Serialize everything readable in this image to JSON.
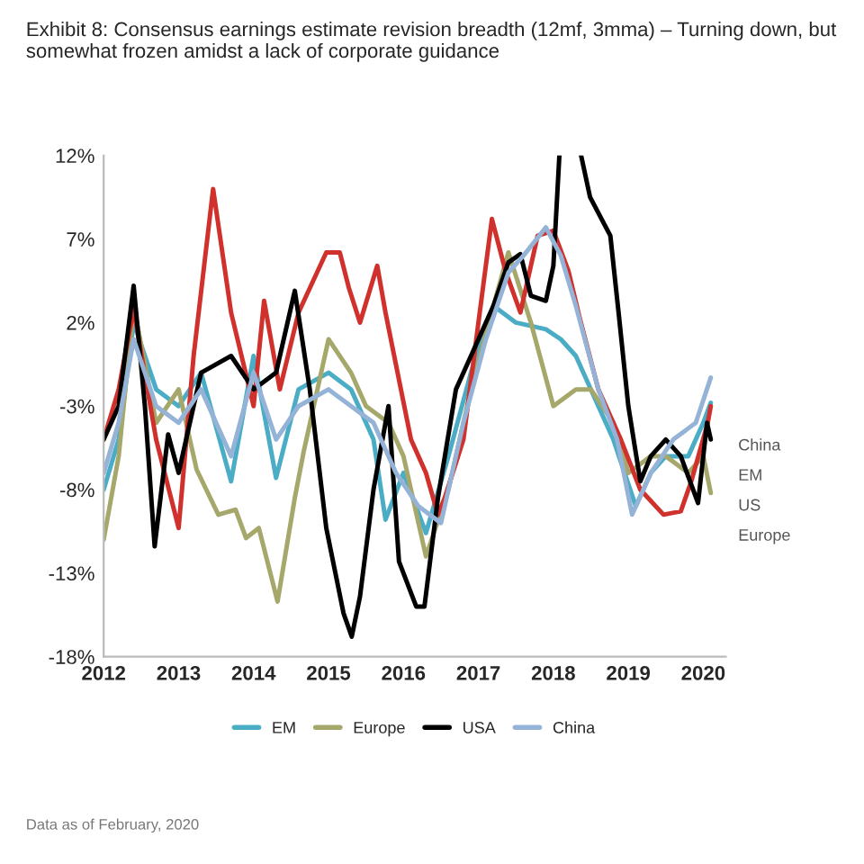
{
  "chart_data": {
    "type": "line",
    "title": "Exhibit 8: Consensus earnings estimate revision breadth (12mf, 3mma) – Turning down, but somewhat frozen amidst a lack of corporate guidance",
    "xlim": [
      2012,
      2020.3
    ],
    "xticks": [
      2012,
      2013,
      2014,
      2015,
      2016,
      2017,
      2018,
      2019,
      2020
    ],
    "ylim": [
      -18,
      12
    ],
    "yticks": [
      {
        "value": -18,
        "label": "-18%"
      },
      {
        "value": -13,
        "label": "-13%"
      },
      {
        "value": -8,
        "label": "-8%"
      },
      {
        "value": -3,
        "label": "-3%"
      },
      {
        "value": 2,
        "label": "2%"
      },
      {
        "value": 7,
        "label": "7%"
      },
      {
        "value": 12,
        "label": "12%"
      }
    ],
    "grid": false,
    "legend": "bottom",
    "line_style": "solid",
    "marker": "none",
    "series": [
      {
        "name": "EM",
        "color": "#4bacc6",
        "x": [
          2012.0,
          2012.2,
          2012.4,
          2012.7,
          2013.0,
          2013.3,
          2013.7,
          2014.0,
          2014.3,
          2014.6,
          2015.0,
          2015.3,
          2015.6,
          2015.76,
          2016.0,
          2016.3,
          2016.6,
          2016.9,
          2017.2,
          2017.5,
          2017.9,
          2018.1,
          2018.3,
          2018.6,
          2018.8,
          2019.1,
          2019.3,
          2019.5,
          2019.8,
          2020.0,
          2020.1
        ],
        "values": [
          -8,
          -5,
          2,
          -2,
          -3,
          -1,
          -7.5,
          0,
          -7.3,
          -2,
          -1,
          -2,
          -5,
          -9.8,
          -7,
          -10.6,
          -6,
          -1,
          3,
          2,
          1.6,
          1,
          0,
          -3,
          -5,
          -9,
          -7,
          -6,
          -6,
          -4,
          -2.8
        ]
      },
      {
        "name": "Europe",
        "color": "#a5a86a",
        "x": [
          2012.0,
          2012.2,
          2012.4,
          2012.7,
          2013.0,
          2013.24,
          2013.53,
          2013.76,
          2013.9,
          2014.07,
          2014.32,
          2014.55,
          2014.67,
          2015.0,
          2015.3,
          2015.5,
          2015.8,
          2016.0,
          2016.3,
          2016.6,
          2016.9,
          2017.2,
          2017.4,
          2017.7,
          2018.0,
          2018.3,
          2018.5,
          2018.8,
          2019.0,
          2019.3,
          2019.5,
          2019.8,
          2020.0,
          2020.1
        ],
        "values": [
          -11,
          -6,
          3,
          -4,
          -2,
          -6.8,
          -9.5,
          -9.2,
          -10.9,
          -10.3,
          -14.7,
          -8.5,
          -5.7,
          1,
          -1,
          -3,
          -4,
          -6,
          -12,
          -8,
          -2,
          3,
          6.2,
          2,
          -3,
          -2,
          -2,
          -4,
          -7,
          -6,
          -6,
          -7,
          -6,
          -8.2
        ]
      },
      {
        "color": "#d0312d",
        "x": [
          2012.0,
          2012.2,
          2012.4,
          2012.7,
          2013.0,
          2013.2,
          2013.46,
          2013.7,
          2014.0,
          2014.14,
          2014.35,
          2014.6,
          2014.97,
          2015.15,
          2015.27,
          2015.42,
          2015.65,
          2015.76,
          2016.1,
          2016.3,
          2016.46,
          2016.55,
          2016.8,
          2017.0,
          2017.18,
          2017.36,
          2017.56,
          2017.79,
          2018.0,
          2018.2,
          2018.35,
          2018.6,
          2018.9,
          2019.16,
          2019.47,
          2019.7,
          2019.84,
          2020.06,
          2020.1
        ],
        "values": [
          -5,
          -2,
          2.8,
          -5,
          -10.3,
          0,
          10,
          2.6,
          -3,
          3.3,
          -2,
          2.6,
          6.2,
          6.2,
          4.1,
          2,
          5.4,
          2.6,
          -5,
          -7,
          -9.5,
          -8.5,
          -5,
          2,
          8.2,
          5.1,
          2.6,
          7.2,
          7.5,
          5.1,
          2.3,
          -2,
          -5,
          -8,
          -9.5,
          -9.3,
          -7.5,
          -4,
          -3
        ]
      },
      {
        "name": "USA",
        "color": "#000000",
        "x": [
          2012.0,
          2012.2,
          2012.4,
          2012.55,
          2012.68,
          2012.86,
          2013.0,
          2013.3,
          2013.7,
          2014.0,
          2014.3,
          2014.55,
          2014.75,
          2014.97,
          2015.2,
          2015.31,
          2015.42,
          2015.6,
          2015.8,
          2015.94,
          2016.17,
          2016.28,
          2016.46,
          2016.7,
          2017.0,
          2017.2,
          2017.4,
          2017.56,
          2017.7,
          2017.9,
          2018.0,
          2018.08,
          2018.2,
          2018.37,
          2018.49,
          2018.76,
          2018.87,
          2019.0,
          2019.16,
          2019.3,
          2019.5,
          2019.7,
          2019.93,
          2020.05,
          2020.1
        ],
        "values": [
          -5,
          -3,
          4.2,
          -3,
          -11.4,
          -4.7,
          -7,
          -1,
          0,
          -2,
          -1,
          3.9,
          -2,
          -10.3,
          -15.4,
          -16.8,
          -14.4,
          -8,
          -3,
          -12.3,
          -15,
          -15,
          -8.5,
          -2,
          1,
          3,
          5.6,
          6.1,
          3.6,
          3.3,
          5.4,
          12,
          null,
          12,
          9.5,
          7.2,
          2.6,
          -3,
          -7.5,
          -6,
          -5,
          -6,
          -8.8,
          -4,
          -5
        ]
      },
      {
        "name": "China",
        "color": "#95b3d7",
        "x": [
          2012.0,
          2012.2,
          2012.4,
          2012.7,
          2013.0,
          2013.3,
          2013.7,
          2014.0,
          2014.3,
          2014.6,
          2015.0,
          2015.3,
          2015.6,
          2015.9,
          2016.2,
          2016.5,
          2016.8,
          2017.1,
          2017.4,
          2017.6,
          2017.9,
          2018.1,
          2018.3,
          2018.6,
          2018.85,
          2019.05,
          2019.3,
          2019.6,
          2019.9,
          2020.1
        ],
        "values": [
          -7,
          -4,
          1,
          -3,
          -4,
          -2,
          -6,
          -1,
          -5,
          -3,
          -2,
          -3,
          -4,
          -7,
          -9,
          -10,
          -4,
          1,
          5,
          6,
          7.7,
          6,
          3,
          -2,
          -5,
          -9.5,
          -7,
          -5,
          -4,
          -1.3
        ]
      }
    ],
    "annotations": [
      "China",
      "EM",
      "US",
      "Europe",
      "Data as of February, 2020"
    ]
  }
}
